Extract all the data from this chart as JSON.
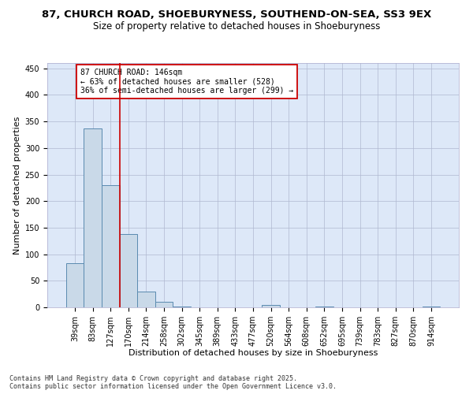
{
  "title_line1": "87, CHURCH ROAD, SHOEBURYNESS, SOUTHEND-ON-SEA, SS3 9EX",
  "title_line2": "Size of property relative to detached houses in Shoeburyness",
  "xlabel": "Distribution of detached houses by size in Shoeburyness",
  "ylabel": "Number of detached properties",
  "categories": [
    "39sqm",
    "83sqm",
    "127sqm",
    "170sqm",
    "214sqm",
    "258sqm",
    "302sqm",
    "345sqm",
    "389sqm",
    "433sqm",
    "477sqm",
    "520sqm",
    "564sqm",
    "608sqm",
    "652sqm",
    "695sqm",
    "739sqm",
    "783sqm",
    "827sqm",
    "870sqm",
    "914sqm"
  ],
  "values": [
    83,
    337,
    230,
    138,
    30,
    10,
    2,
    0,
    0,
    0,
    0,
    5,
    0,
    0,
    1,
    0,
    0,
    0,
    0,
    0,
    1
  ],
  "bar_color": "#c9d9e8",
  "bar_edge_color": "#5a8ab0",
  "vline_color": "#cc0000",
  "annotation_text": "87 CHURCH ROAD: 146sqm\n← 63% of detached houses are smaller (528)\n36% of semi-detached houses are larger (299) →",
  "annotation_box_color": "#cc0000",
  "ylim": [
    0,
    460
  ],
  "yticks": [
    0,
    50,
    100,
    150,
    200,
    250,
    300,
    350,
    400,
    450
  ],
  "grid_color": "#b0b8d0",
  "bg_color": "#dde8f8",
  "footer_line1": "Contains HM Land Registry data © Crown copyright and database right 2025.",
  "footer_line2": "Contains public sector information licensed under the Open Government Licence v3.0.",
  "title_fontsize": 9.5,
  "subtitle_fontsize": 8.5,
  "tick_fontsize": 7,
  "xlabel_fontsize": 8,
  "ylabel_fontsize": 8,
  "footer_fontsize": 6
}
